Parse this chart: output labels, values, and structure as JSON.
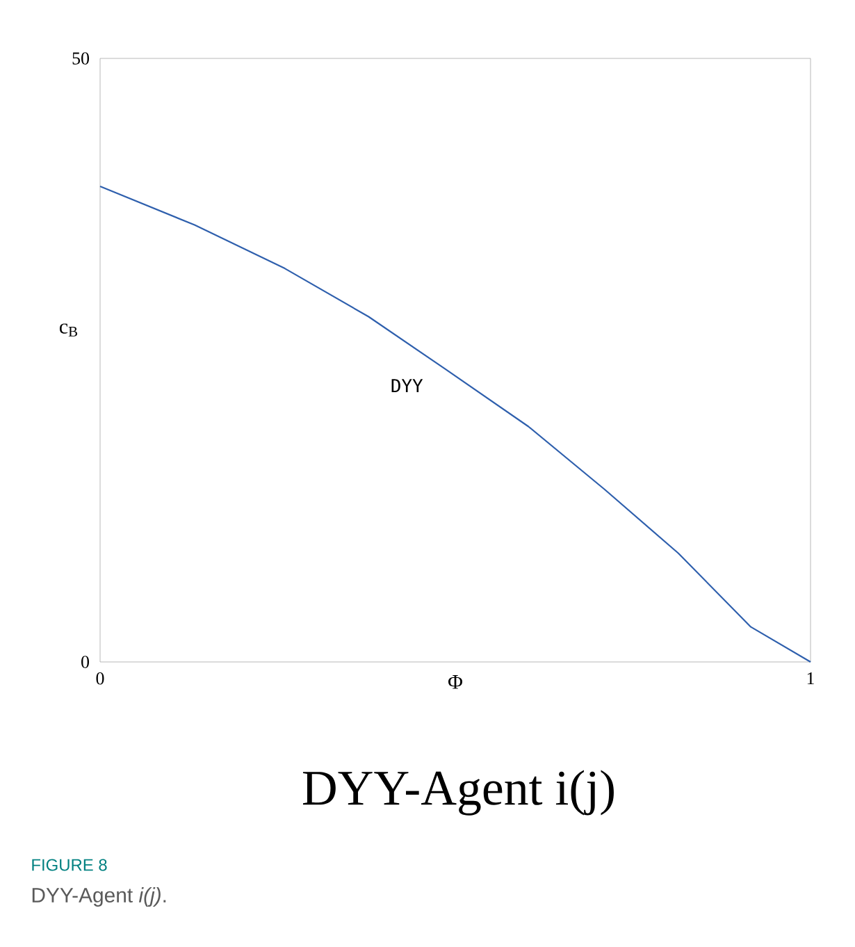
{
  "chart_data": {
    "type": "line",
    "title": "DYY-Agent i(j)",
    "xlabel": "Φ",
    "ylabel": "c$_{B}$",
    "x": [
      0,
      0.133,
      0.26,
      0.378,
      0.485,
      0.603,
      0.71,
      0.814,
      0.916,
      1.0
    ],
    "series": [
      {
        "name": "DYY",
        "color": "#2e5fad",
        "values": [
          39.4,
          36.2,
          32.6,
          28.6,
          24.3,
          19.5,
          14.3,
          9.0,
          2.9,
          0
        ]
      }
    ],
    "xlim": [
      0,
      1
    ],
    "ylim": [
      0,
      50
    ],
    "xticks": [
      0,
      1
    ],
    "yticks": [
      0,
      50
    ],
    "grid": false,
    "legend": false,
    "marker": "none",
    "line_style": "solid",
    "annotations": [
      "FIGURE 8",
      "DYY-Agent *i(j)*."
    ]
  }
}
